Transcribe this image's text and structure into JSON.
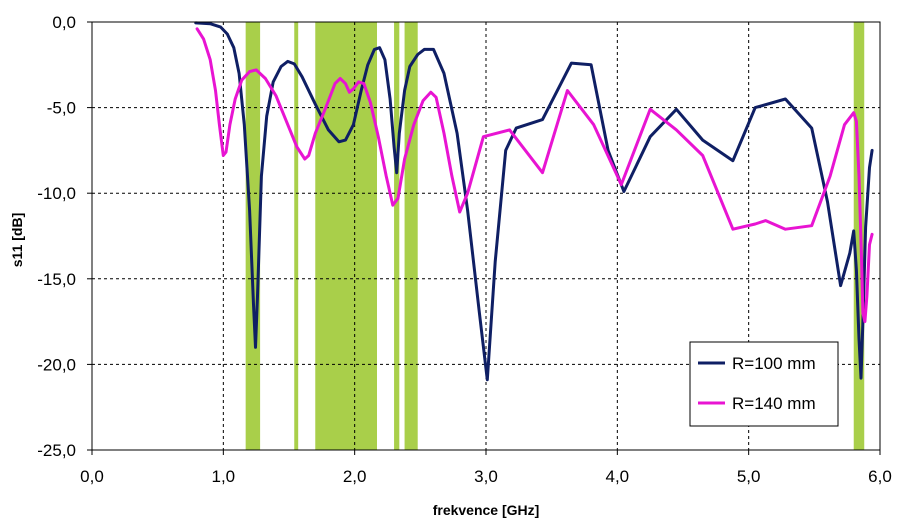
{
  "chart_data": {
    "type": "line",
    "xlabel": "frekvence [GHz]",
    "ylabel": "s11 [dB]",
    "xlim": [
      0.0,
      6.0
    ],
    "ylim": [
      -25.0,
      0.0
    ],
    "x_ticks": [
      0.0,
      1.0,
      2.0,
      3.0,
      4.0,
      5.0,
      6.0
    ],
    "y_ticks": [
      0.0,
      -5.0,
      -10.0,
      -15.0,
      -20.0,
      -25.0
    ],
    "x_tick_labels": [
      "0,0",
      "1,0",
      "2,0",
      "3,0",
      "4,0",
      "5,0",
      "6,0"
    ],
    "y_tick_labels": [
      "0,0",
      "-5,0",
      "-10,0",
      "-15,0",
      "-20,0",
      "-25,0"
    ],
    "grid": true,
    "legend_position": "bottom-right",
    "highlight_bands": [
      {
        "from": 1.17,
        "to": 1.28
      },
      {
        "from": 1.54,
        "to": 1.57
      },
      {
        "from": 1.7,
        "to": 2.17
      },
      {
        "from": 2.3,
        "to": 2.34
      },
      {
        "from": 2.38,
        "to": 2.48
      },
      {
        "from": 5.8,
        "to": 5.88
      }
    ],
    "band_color": "#a9cf4a",
    "series": [
      {
        "name": "R=100 mm",
        "color": "#0f1f64",
        "points": [
          [
            0.79,
            -0.05
          ],
          [
            0.9,
            -0.1
          ],
          [
            0.98,
            -0.3
          ],
          [
            1.03,
            -0.7
          ],
          [
            1.08,
            -1.5
          ],
          [
            1.12,
            -3.0
          ],
          [
            1.16,
            -6.0
          ],
          [
            1.2,
            -11.0
          ],
          [
            1.23,
            -16.5
          ],
          [
            1.245,
            -19.0
          ],
          [
            1.26,
            -16.0
          ],
          [
            1.29,
            -9.0
          ],
          [
            1.33,
            -5.5
          ],
          [
            1.38,
            -3.5
          ],
          [
            1.44,
            -2.6
          ],
          [
            1.49,
            -2.3
          ],
          [
            1.54,
            -2.45
          ],
          [
            1.6,
            -3.2
          ],
          [
            1.7,
            -4.8
          ],
          [
            1.8,
            -6.3
          ],
          [
            1.88,
            -7.0
          ],
          [
            1.93,
            -6.9
          ],
          [
            1.99,
            -6.0
          ],
          [
            2.05,
            -4.0
          ],
          [
            2.1,
            -2.5
          ],
          [
            2.15,
            -1.6
          ],
          [
            2.19,
            -1.5
          ],
          [
            2.23,
            -2.2
          ],
          [
            2.27,
            -4.5
          ],
          [
            2.3,
            -7.3
          ],
          [
            2.32,
            -8.8
          ],
          [
            2.34,
            -6.5
          ],
          [
            2.38,
            -4.0
          ],
          [
            2.42,
            -2.6
          ],
          [
            2.48,
            -1.9
          ],
          [
            2.53,
            -1.6
          ],
          [
            2.6,
            -1.6
          ],
          [
            2.68,
            -3.0
          ],
          [
            2.78,
            -6.5
          ],
          [
            2.86,
            -11.0
          ],
          [
            2.95,
            -17.0
          ],
          [
            3.01,
            -20.9
          ],
          [
            3.07,
            -14.0
          ],
          [
            3.15,
            -7.5
          ],
          [
            3.23,
            -6.2
          ],
          [
            3.43,
            -5.7
          ],
          [
            3.65,
            -2.4
          ],
          [
            3.8,
            -2.5
          ],
          [
            3.93,
            -7.5
          ],
          [
            4.05,
            -9.9
          ],
          [
            4.25,
            -6.7
          ],
          [
            4.45,
            -5.1
          ],
          [
            4.65,
            -6.9
          ],
          [
            4.88,
            -8.1
          ],
          [
            5.05,
            -5.0
          ],
          [
            5.28,
            -4.5
          ],
          [
            5.48,
            -6.2
          ],
          [
            5.6,
            -10.5
          ],
          [
            5.7,
            -15.4
          ],
          [
            5.77,
            -13.5
          ],
          [
            5.8,
            -12.2
          ],
          [
            5.82,
            -14.5
          ],
          [
            5.84,
            -18.5
          ],
          [
            5.855,
            -20.8
          ],
          [
            5.87,
            -17.5
          ],
          [
            5.89,
            -12.0
          ],
          [
            5.92,
            -8.5
          ],
          [
            5.94,
            -7.5
          ]
        ]
      },
      {
        "name": "R=140 mm",
        "color": "#e814d2",
        "points": [
          [
            0.8,
            -0.4
          ],
          [
            0.85,
            -1.0
          ],
          [
            0.9,
            -2.2
          ],
          [
            0.94,
            -4.0
          ],
          [
            0.97,
            -6.0
          ],
          [
            1.0,
            -7.8
          ],
          [
            1.02,
            -7.6
          ],
          [
            1.05,
            -6.0
          ],
          [
            1.09,
            -4.5
          ],
          [
            1.14,
            -3.4
          ],
          [
            1.2,
            -2.9
          ],
          [
            1.25,
            -2.8
          ],
          [
            1.32,
            -3.3
          ],
          [
            1.4,
            -4.3
          ],
          [
            1.48,
            -5.8
          ],
          [
            1.56,
            -7.3
          ],
          [
            1.62,
            -8.0
          ],
          [
            1.65,
            -7.8
          ],
          [
            1.7,
            -6.5
          ],
          [
            1.78,
            -5.0
          ],
          [
            1.85,
            -3.6
          ],
          [
            1.89,
            -3.3
          ],
          [
            1.93,
            -3.6
          ],
          [
            1.96,
            -4.1
          ],
          [
            1.99,
            -3.9
          ],
          [
            2.03,
            -3.5
          ],
          [
            2.07,
            -3.6
          ],
          [
            2.12,
            -4.7
          ],
          [
            2.18,
            -6.7
          ],
          [
            2.24,
            -9.0
          ],
          [
            2.29,
            -10.7
          ],
          [
            2.33,
            -10.3
          ],
          [
            2.38,
            -8.0
          ],
          [
            2.45,
            -6.0
          ],
          [
            2.52,
            -4.6
          ],
          [
            2.58,
            -4.1
          ],
          [
            2.62,
            -4.4
          ],
          [
            2.68,
            -6.5
          ],
          [
            2.74,
            -9.0
          ],
          [
            2.8,
            -11.1
          ],
          [
            2.86,
            -10.0
          ],
          [
            2.98,
            -6.7
          ],
          [
            3.18,
            -6.3
          ],
          [
            3.43,
            -8.8
          ],
          [
            3.62,
            -4.0
          ],
          [
            3.82,
            -6.0
          ],
          [
            4.03,
            -9.5
          ],
          [
            4.25,
            -5.1
          ],
          [
            4.45,
            -6.3
          ],
          [
            4.65,
            -7.8
          ],
          [
            4.88,
            -12.1
          ],
          [
            5.05,
            -11.8
          ],
          [
            5.13,
            -11.6
          ],
          [
            5.28,
            -12.1
          ],
          [
            5.48,
            -11.9
          ],
          [
            5.62,
            -9.0
          ],
          [
            5.73,
            -6.0
          ],
          [
            5.8,
            -5.3
          ],
          [
            5.82,
            -5.8
          ],
          [
            5.84,
            -9.0
          ],
          [
            5.86,
            -14.0
          ],
          [
            5.87,
            -17.0
          ],
          [
            5.885,
            -17.5
          ],
          [
            5.9,
            -16.0
          ],
          [
            5.92,
            -13.0
          ],
          [
            5.94,
            -12.4
          ]
        ]
      }
    ]
  }
}
